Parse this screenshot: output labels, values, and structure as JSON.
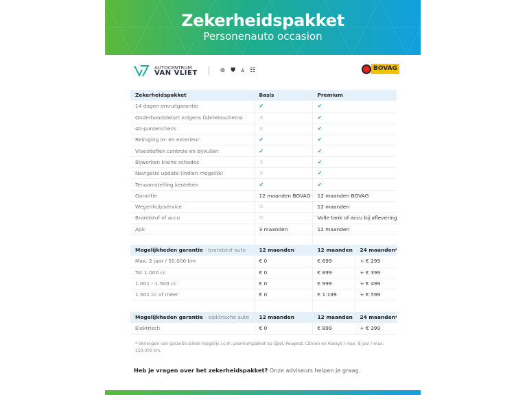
{
  "header": {
    "title": "Zekerheidspakket",
    "subtitle": "Personenauto occasion",
    "gradient": [
      "#5cb93a",
      "#12a0df"
    ]
  },
  "brand": {
    "name_top": "AUTOCENTRUM",
    "name_bottom": "VAN VLIET",
    "partner_logos": [
      "Opel",
      "Peugeot",
      "Citroën",
      "Always"
    ],
    "bovag": "BOVAG"
  },
  "package_table": {
    "headers": [
      "Zekerheidspakket",
      "Basis",
      "Premium"
    ],
    "rows": [
      {
        "label": "14 dagen omruilgarantie",
        "basis": "check",
        "premium": "check"
      },
      {
        "label": "Onderhoudsbeurt volgens fabrieksschema",
        "basis": "cross",
        "premium": "check"
      },
      {
        "label": "40-puntencheck",
        "basis": "cross",
        "premium": "check"
      },
      {
        "label": "Reiniging in- en exterieur",
        "basis": "check",
        "premium": "check"
      },
      {
        "label": "Vloeistoffen controle en bijvullen",
        "basis": "check",
        "premium": "check"
      },
      {
        "label": "Bijwerken kleine schades",
        "basis": "cross",
        "premium": "check"
      },
      {
        "label": "Navigatie update (indien mogelijk)",
        "basis": "cross",
        "premium": "check"
      },
      {
        "label": "Tenaamstelling kenteken",
        "basis": "check",
        "premium": "check"
      },
      {
        "label": "Garantie",
        "basis": "12 maanden BOVAG",
        "premium": "12 maanden BOVAG"
      },
      {
        "label": "Wegenhulpservice",
        "basis": "cross",
        "premium": "12 maanden"
      },
      {
        "label": "Brandstof of accu",
        "basis": "cross",
        "premium": "Volle tank of accu bij aflevering"
      },
      {
        "label": "Apk",
        "basis": "3 maanden",
        "premium": "12 maanden"
      }
    ]
  },
  "fuel_table": {
    "title": "Mogelijkheden garantie",
    "subtitle": "- brandstof auto",
    "headers": [
      "12 maanden",
      "12 maanden",
      "24 maanden*"
    ],
    "rows": [
      {
        "label": "Max. 2 jaar / 50.000 km",
        "values": [
          "€ 0",
          "€ 699",
          "+ € 299"
        ]
      },
      {
        "label": "Tot 1.000 cc",
        "values": [
          "€ 0",
          "€ 899",
          "+ € 399"
        ]
      },
      {
        "label": "1.001 - 1.500 cc",
        "values": [
          "€ 0",
          "€ 999",
          "+ € 499"
        ]
      },
      {
        "label": "1.501 cc of meer",
        "values": [
          "€ 0",
          "€ 1.199",
          "+ € 599"
        ]
      }
    ]
  },
  "electric_table": {
    "title": "Mogelijkheden garantie",
    "subtitle": "- elektrische auto",
    "headers": [
      "12 maanden",
      "12 maanden",
      "24 maanden*"
    ],
    "rows": [
      {
        "label": "Elektrisch",
        "values": [
          "€ 0",
          "€ 899",
          "+ € 399"
        ]
      }
    ]
  },
  "footnote": "* Verlengen van garantie alleen mogelijk i.c.m. premiumpakket op Opel, Peugeot, Citroën en Always / max. 8 jaar / max. 150.000 km.",
  "question": {
    "bold": "Heb je vragen over het zekerheidspakket?",
    "rest": " Onze adviseurs helpen je graag."
  }
}
